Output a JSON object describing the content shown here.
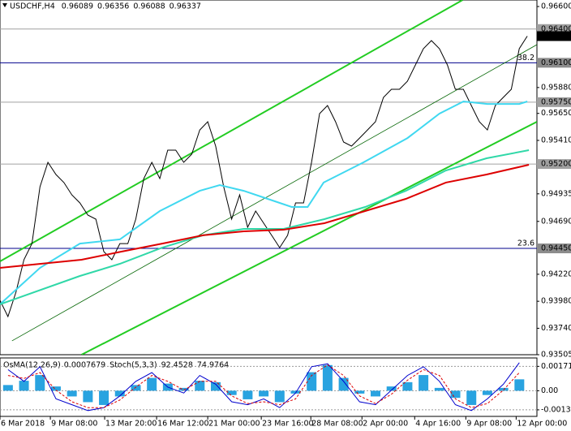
{
  "chart_data": [
    {
      "type": "line",
      "title": "USDCHF,H4",
      "ohlc": [
        0.96089,
        0.96356,
        0.96088,
        0.96337
      ],
      "xlim": [
        0,
        67.2
      ],
      "ylim": [
        0.93505,
        0.96658
      ],
      "yticks": [
        {
          "value": 0.966,
          "label": "0.96600"
        },
        {
          "value": 0.9588,
          "label": "0.95880"
        },
        {
          "value": 0.9565,
          "label": "0.95650"
        },
        {
          "value": 0.9541,
          "label": "0.95410"
        },
        {
          "value": 0.94935,
          "label": "0.94935"
        },
        {
          "value": 0.9469,
          "label": "0.94690"
        },
        {
          "value": 0.9422,
          "label": "0.94220"
        },
        {
          "value": 0.9398,
          "label": "0.93980"
        },
        {
          "value": 0.9374,
          "label": "0.93740"
        },
        {
          "value": 0.93505,
          "label": "0.93505"
        }
      ],
      "xticks": [
        {
          "value": 0,
          "label": "6 Mar 2018"
        },
        {
          "value": 6.3,
          "label": "9 Mar 08:00"
        },
        {
          "value": 13.1,
          "label": "13 Mar 20:00"
        },
        {
          "value": 19.6,
          "label": "16 Mar 12:00"
        },
        {
          "value": 26,
          "label": "21 Mar 00:00"
        },
        {
          "value": 32.7,
          "label": "23 Mar 16:00"
        },
        {
          "value": 38.9,
          "label": "28 Mar 08:00"
        },
        {
          "value": 45.3,
          "label": "2 Apr 00:00"
        },
        {
          "value": 51.9,
          "label": "4 Apr 16:00"
        },
        {
          "value": 58.3,
          "label": "9 Apr 08:00"
        },
        {
          "value": 64.6,
          "label": "12 Apr 00:00"
        }
      ],
      "levels": [
        {
          "value": 0.964,
          "label": "0.96400",
          "color": "#a0a0a0"
        },
        {
          "value": 0.961,
          "label": "0.96100",
          "color": "#00008b",
          "fib": "38.2"
        },
        {
          "value": 0.9575,
          "label": "0.95750",
          "color": "#a0a0a0"
        },
        {
          "value": 0.952,
          "label": "0.95200",
          "color": "#a0a0a0"
        },
        {
          "value": 0.9445,
          "label": "0.94450",
          "color": "#00008b",
          "fib": "23.6"
        }
      ],
      "last": {
        "value": 0.96337,
        "label": "0.96337"
      },
      "channels": [
        {
          "color": "#22cc22",
          "x": [
            0,
            57.9
          ],
          "values": [
            0.94335,
            0.96658
          ]
        },
        {
          "color": "#006400",
          "x": [
            1.5,
            67.2
          ],
          "values": [
            0.93628,
            0.96261
          ]
        },
        {
          "color": "#22cc22",
          "x": [
            10.2,
            67.2
          ],
          "values": [
            0.93505,
            0.95576
          ]
        }
      ],
      "series": [
        {
          "color": "#000000",
          "values": [
            0.93988,
            0.93844,
            0.94061,
            0.94349,
            0.94493,
            0.94998,
            0.95215,
            0.95107,
            0.95035,
            0.94926,
            0.94854,
            0.94746,
            0.9471,
            0.94421,
            0.94349,
            0.94493,
            0.94493,
            0.9471,
            0.95071,
            0.95215,
            0.95071,
            0.95323,
            0.95323,
            0.95215,
            0.95287,
            0.95503,
            0.95576,
            0.95359,
            0.94998,
            0.9471,
            0.94926,
            0.94638,
            0.94782,
            0.94674,
            0.94566,
            0.94457,
            0.94566,
            0.94854,
            0.94854,
            0.95215,
            0.95648,
            0.9572,
            0.95576,
            0.95395,
            0.95359,
            0.95431,
            0.95503,
            0.95576,
            0.95792,
            0.95864,
            0.95864,
            0.95936,
            0.96081,
            0.96225,
            0.96297,
            0.96225,
            0.96081,
            0.95864,
            0.95864,
            0.9572,
            0.95576,
            0.95503,
            0.9572,
            0.95792,
            0.95864,
            0.96225,
            0.96337
          ]
        },
        {
          "color": "#40d8f0",
          "x": [
            0,
            5,
            10,
            15,
            20,
            25,
            27.5,
            30.5,
            33.5,
            36.5,
            38.5,
            40.5,
            45.5,
            51,
            55,
            58,
            61,
            65,
            66
          ],
          "values": [
            0.93953,
            0.94277,
            0.94493,
            0.9453,
            0.94782,
            0.94962,
            0.95013,
            0.94962,
            0.9489,
            0.94818,
            0.94818,
            0.95035,
            0.95215,
            0.95431,
            0.95648,
            0.95756,
            0.95734,
            0.95734,
            0.95756
          ]
        },
        {
          "color": "#30d8a8",
          "x": [
            0,
            10,
            15,
            20.3,
            25.4,
            30.5,
            35.5,
            40.6,
            45.7,
            50.8,
            55.8,
            60.9,
            66.2
          ],
          "values": [
            0.93953,
            0.94205,
            0.94313,
            0.94457,
            0.94566,
            0.94623,
            0.94623,
            0.9471,
            0.94818,
            0.94962,
            0.95143,
            0.95251,
            0.95323
          ]
        },
        {
          "color": "#dd0000",
          "x": [
            0,
            5.1,
            10.2,
            15.2,
            20.3,
            25.4,
            30.5,
            35.5,
            40.6,
            45.7,
            50.8,
            55.8,
            60.9,
            66.2
          ],
          "values": [
            0.94277,
            0.94313,
            0.94349,
            0.94421,
            0.94493,
            0.94566,
            0.94602,
            0.94616,
            0.94674,
            0.94782,
            0.9489,
            0.95035,
            0.95107,
            0.95193
          ]
        }
      ]
    },
    {
      "type": "bar",
      "osma_label": "OsMA(12,26,9)",
      "osma_value": 0.0007679,
      "stoch_label": "Stoch(5,3,3)",
      "stoch_values": [
        92.4528,
        74.9764
      ],
      "xlim": [
        0,
        67.2
      ],
      "ylim": [
        -0.0018,
        0.0023
      ],
      "y2lim": [
        0,
        100
      ],
      "yticks": [
        {
          "value": 0.00171,
          "label": "0.00171"
        },
        {
          "value": 0,
          "label": "0.00"
        },
        {
          "value": -0.00134,
          "label": "-0.00134"
        }
      ],
      "color": "#29a3e0",
      "x": [
        1,
        3,
        5,
        7,
        9,
        11,
        13,
        15,
        17,
        19,
        21,
        23,
        25,
        27,
        29,
        31,
        33,
        35,
        37,
        39,
        41,
        43,
        45,
        47,
        49,
        51,
        53,
        55,
        57,
        59,
        61,
        63,
        65
      ],
      "values": [
        0.0004,
        0.0007,
        0.0011,
        0.0003,
        -0.0004,
        -0.0008,
        -0.001,
        -0.0004,
        0.0004,
        0.0009,
        0.0005,
        0.0002,
        0.0007,
        0.0006,
        -0.0003,
        -0.0006,
        -0.0004,
        -0.0008,
        -0.0002,
        0.0013,
        0.0018,
        0.0009,
        -0.0002,
        -0.0004,
        0.0003,
        0.0006,
        0.0011,
        0.0002,
        -0.0005,
        -0.001,
        -0.0003,
        0.0002,
        0.0008
      ],
      "series": [
        {
          "color": "#0000cd",
          "axis": "y2",
          "values": [
            80,
            60,
            85,
            30,
            20,
            10,
            15,
            35,
            60,
            75,
            50,
            40,
            70,
            55,
            25,
            20,
            30,
            15,
            40,
            85,
            90,
            60,
            25,
            20,
            45,
            70,
            85,
            60,
            20,
            10,
            30,
            55,
            92
          ]
        },
        {
          "color": "#dd0000",
          "axis": "y2",
          "dashed": true,
          "values": [
            70,
            65,
            75,
            45,
            25,
            15,
            15,
            28,
            50,
            70,
            60,
            45,
            60,
            60,
            35,
            22,
            25,
            20,
            30,
            70,
            88,
            70,
            35,
            22,
            38,
            62,
            80,
            70,
            30,
            15,
            22,
            45,
            75
          ]
        }
      ]
    }
  ]
}
